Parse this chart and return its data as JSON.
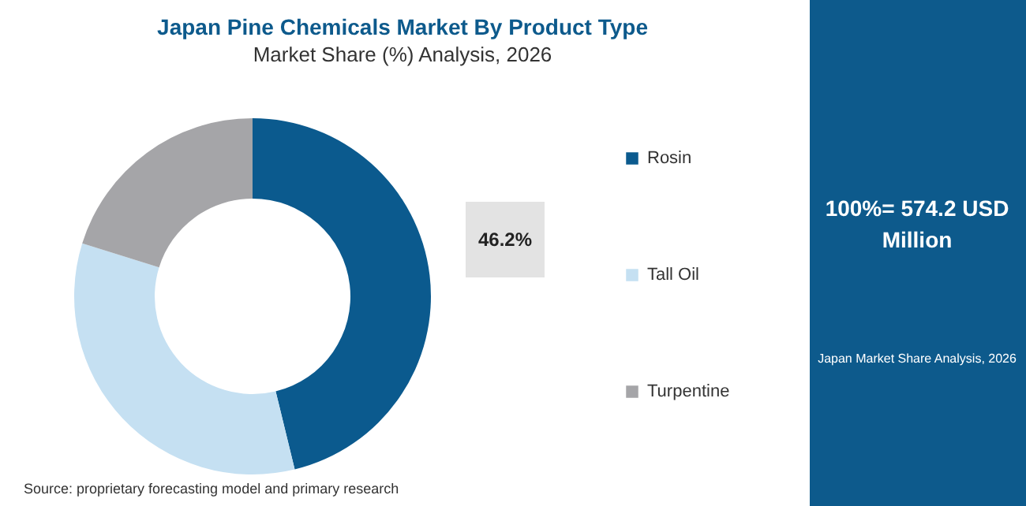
{
  "chart_data": {
    "type": "donut",
    "title": "Japan Pine Chemicals Market By Product Type",
    "subtitle": "Market Share (%) Analysis, 2026",
    "categories": [
      "Rosin",
      "Tall Oil",
      "Turpentine"
    ],
    "values": [
      46.2,
      33.6,
      20.2
    ],
    "colors": [
      "#0b5a8e",
      "#c5e0f2",
      "#a5a5a8"
    ],
    "value_labels": [
      "46.2%",
      null,
      null
    ],
    "legend": "right",
    "annotations": [
      "100%= 574.2 USD Million",
      "Japan Market Share Analysis, 2026",
      "Source: proprietary forecasting model and primary research"
    ]
  }
}
